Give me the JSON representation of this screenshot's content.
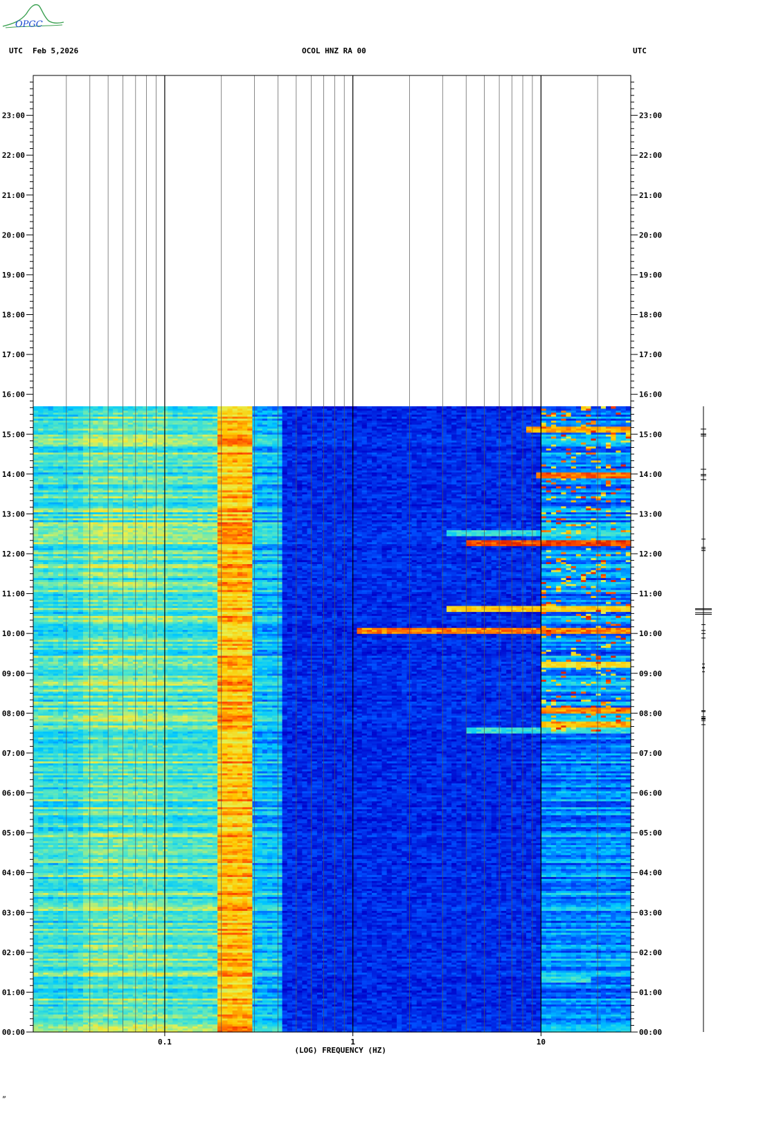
{
  "header": {
    "left_label": "UTC",
    "date": "Feb 5,2026",
    "station": "OCOL HNZ RA 00",
    "right_label": "UTC",
    "logo_text": "OPGC"
  },
  "footer": {
    "mark": "„"
  },
  "chart_data": {
    "type": "heatmap",
    "title": "OCOL HNZ RA 00",
    "xlabel": "(LOG) FREQUENCY (HZ)",
    "x_scale": "log",
    "xlim": [
      0.02,
      30
    ],
    "x_ticks": [
      0.1,
      1,
      10
    ],
    "x_tick_labels": [
      "0.1",
      "1",
      "10"
    ],
    "ylabel": "UTC",
    "y_unit": "hours",
    "ylim": [
      0,
      24
    ],
    "y_ticks": [
      0,
      1,
      2,
      3,
      4,
      5,
      6,
      7,
      8,
      9,
      10,
      11,
      12,
      13,
      14,
      15,
      16,
      17,
      18,
      19,
      20,
      21,
      22,
      23
    ],
    "y_tick_labels": [
      "00:00",
      "01:00",
      "02:00",
      "03:00",
      "04:00",
      "05:00",
      "06:00",
      "07:00",
      "08:00",
      "09:00",
      "10:00",
      "11:00",
      "12:00",
      "13:00",
      "14:00",
      "15:00",
      "16:00",
      "17:00",
      "18:00",
      "19:00",
      "20:00",
      "21:00",
      "22:00",
      "23:00"
    ],
    "data_end_hour": 15.7,
    "colormap": [
      "#0000c8",
      "#0050ff",
      "#00c8ff",
      "#50e6c8",
      "#e6f050",
      "#ffc800",
      "#ff5000",
      "#c80000"
    ],
    "bands": [
      {
        "f0": 0.02,
        "f1": 0.035,
        "level": 0.4
      },
      {
        "f0": 0.035,
        "f1": 0.1,
        "level": 0.46
      },
      {
        "f0": 0.1,
        "f1": 0.18,
        "level": 0.42
      },
      {
        "f0": 0.18,
        "f1": 0.28,
        "level": 0.72
      },
      {
        "f0": 0.28,
        "f1": 0.4,
        "level": 0.3
      },
      {
        "f0": 0.4,
        "f1": 10,
        "level": 0.08
      },
      {
        "f0": 10,
        "f1": 30,
        "level": 0.22
      }
    ],
    "events": [
      {
        "t": 12.25,
        "f0": 4,
        "f1": 30,
        "level": 0.95
      },
      {
        "t": 10.05,
        "f0": 1,
        "f1": 30,
        "level": 0.88
      },
      {
        "t": 10.6,
        "f0": 3,
        "f1": 30,
        "level": 0.75
      },
      {
        "t": 13.95,
        "f0": 9,
        "f1": 30,
        "level": 0.9
      },
      {
        "t": 15.1,
        "f0": 8,
        "f1": 30,
        "level": 0.82
      },
      {
        "t": 8.05,
        "f0": 10,
        "f1": 30,
        "level": 0.86
      },
      {
        "t": 7.7,
        "f0": 10,
        "f1": 30,
        "level": 0.8
      },
      {
        "t": 12.5,
        "f0": 3,
        "f1": 30,
        "level": 0.45
      },
      {
        "t": 7.55,
        "f0": 4,
        "f1": 30,
        "level": 0.45
      },
      {
        "t": 9.2,
        "f0": 10,
        "f1": 30,
        "level": 0.7
      },
      {
        "t": 1.3,
        "f0": 10,
        "f1": 18,
        "level": 0.45
      }
    ],
    "seismogram_start_hour": 0,
    "seismogram_end_hour": 15.7
  }
}
